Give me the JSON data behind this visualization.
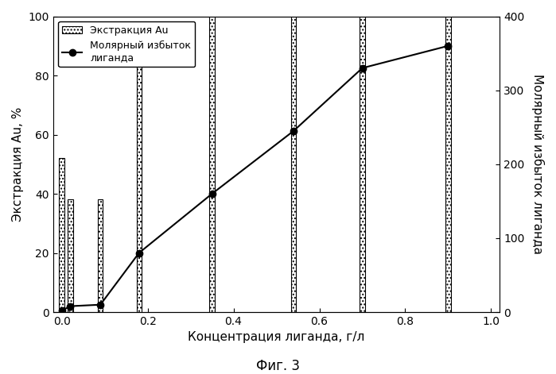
{
  "bar_x": [
    0.0,
    0.02,
    0.09,
    0.18,
    0.35,
    0.54,
    0.7,
    0.9
  ],
  "bar_height": [
    52,
    38,
    38,
    85,
    100,
    100,
    100,
    100
  ],
  "bar_width": 0.012,
  "line_x": [
    0.0,
    0.02,
    0.09,
    0.18,
    0.35,
    0.54,
    0.7,
    0.9
  ],
  "line_y": [
    2,
    8,
    10,
    80,
    160,
    245,
    330,
    360
  ],
  "ylabel_left": "Экстракция Au, %",
  "ylabel_right": "Молярный избыток лиганда",
  "xlabel": "Концентрация лиганда, г/л",
  "fig_caption": "Фиг. 3",
  "legend_bar": "Экстракция Au",
  "legend_line": "Молярный избыток\nлиганда",
  "ylim_left": [
    0,
    100
  ],
  "ylim_right": [
    0,
    400
  ],
  "xlim": [
    -0.02,
    1.02
  ],
  "xticks": [
    0.0,
    0.2,
    0.4,
    0.6,
    0.8,
    1.0
  ],
  "yticks_left": [
    0,
    20,
    40,
    60,
    80,
    100
  ],
  "yticks_right": [
    0,
    100,
    200,
    300,
    400
  ],
  "bar_facecolor": "white",
  "bar_edgecolor": "black",
  "bar_hatch": "....",
  "line_color": "black",
  "marker": "o",
  "marker_size": 6,
  "marker_facecolor": "black",
  "bg_color": "white",
  "font_size_label": 11,
  "font_size_tick": 10,
  "font_size_caption": 12,
  "font_size_legend": 9
}
